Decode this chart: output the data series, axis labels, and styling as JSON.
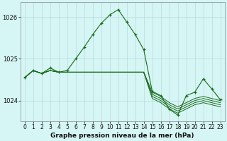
{
  "title": "Graphe pression niveau de la mer (hPa)",
  "bg_color": "#d6f5f5",
  "grid_color": "#b8dada",
  "line_color": "#1a6b1a",
  "x_labels": [
    "0",
    "1",
    "2",
    "3",
    "4",
    "5",
    "6",
    "7",
    "8",
    "9",
    "10",
    "11",
    "12",
    "13",
    "14",
    "15",
    "16",
    "17",
    "18",
    "19",
    "20",
    "21",
    "22",
    "23"
  ],
  "ylim": [
    1023.5,
    1026.35
  ],
  "yticks": [
    1024,
    1025,
    1026
  ],
  "ylabel_size": 6,
  "xlabel_size": 5.5,
  "series": [
    [
      1024.55,
      1024.72,
      1024.65,
      1024.72,
      1024.68,
      1024.68,
      1024.68,
      1024.68,
      1024.68,
      1024.68,
      1024.68,
      1024.68,
      1024.68,
      1024.68,
      1024.68,
      1024.2,
      1024.1,
      1023.95,
      1023.85,
      1023.95,
      1024.05,
      1024.1,
      1024.05,
      1024.0
    ],
    [
      1024.55,
      1024.72,
      1024.65,
      1024.72,
      1024.68,
      1024.68,
      1024.68,
      1024.68,
      1024.68,
      1024.68,
      1024.68,
      1024.68,
      1024.68,
      1024.68,
      1024.68,
      1024.15,
      1024.05,
      1023.9,
      1023.8,
      1023.9,
      1024.0,
      1024.05,
      1024.0,
      1023.95
    ],
    [
      1024.55,
      1024.72,
      1024.65,
      1024.72,
      1024.68,
      1024.68,
      1024.68,
      1024.68,
      1024.68,
      1024.68,
      1024.68,
      1024.68,
      1024.68,
      1024.68,
      1024.68,
      1024.1,
      1024.0,
      1023.85,
      1023.75,
      1023.85,
      1023.95,
      1024.0,
      1023.95,
      1023.9
    ],
    [
      1024.55,
      1024.72,
      1024.65,
      1024.72,
      1024.68,
      1024.68,
      1024.68,
      1024.68,
      1024.68,
      1024.68,
      1024.68,
      1024.68,
      1024.68,
      1024.68,
      1024.68,
      1024.05,
      1023.95,
      1023.8,
      1023.7,
      1023.8,
      1023.9,
      1023.95,
      1023.9,
      1023.85
    ]
  ],
  "main_series": [
    1024.55,
    1024.72,
    1024.65,
    1024.78,
    1024.68,
    1024.72,
    1025.0,
    1025.28,
    1025.58,
    1025.85,
    1026.05,
    1026.18,
    1025.88,
    1025.58,
    1025.22,
    1024.22,
    1024.12,
    1023.8,
    1023.65,
    1024.12,
    1024.2,
    1024.52,
    1024.28,
    1024.02
  ]
}
